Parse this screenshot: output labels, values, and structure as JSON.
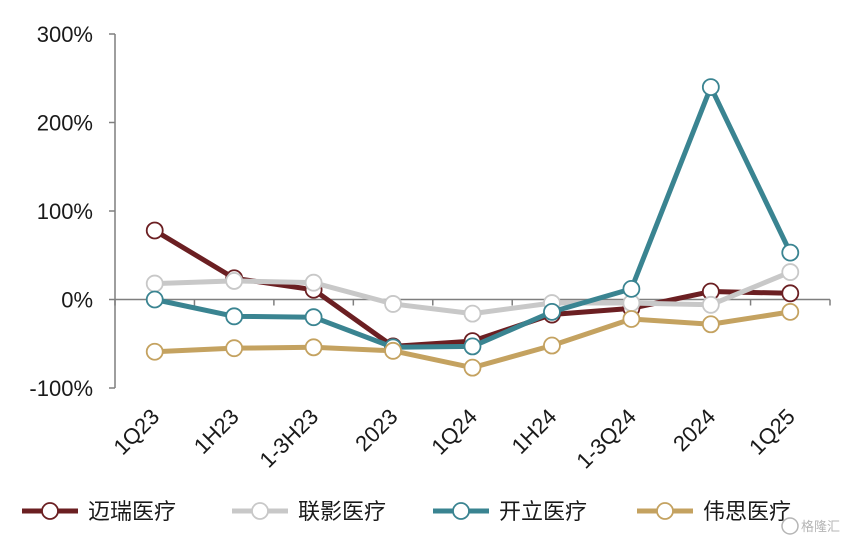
{
  "chart_data": {
    "type": "line",
    "categories": [
      "1Q23",
      "1H23",
      "1-3H23",
      "2023",
      "1Q24",
      "1H24",
      "1-3Q24",
      "2024",
      "1Q25"
    ],
    "ylim": [
      -100,
      300
    ],
    "yticks": [
      -100,
      0,
      100,
      200,
      300
    ],
    "ytick_labels": [
      "-100%",
      "0%",
      "100%",
      "200%",
      "300%"
    ],
    "title": "",
    "xlabel": "",
    "ylabel": "",
    "legend_position": "bottom",
    "series": [
      {
        "name": "迈瑞医疗",
        "color": "#6b1f22",
        "values": [
          78,
          24,
          11,
          -53,
          -47,
          -17,
          -10,
          9,
          7
        ]
      },
      {
        "name": "联影医疗",
        "color": "#c8c8c8",
        "values": [
          18,
          21,
          19,
          -5,
          -16,
          -4,
          -4,
          -6,
          31
        ]
      },
      {
        "name": "开立医疗",
        "color": "#3a8491",
        "values": [
          0,
          -19,
          -20,
          -54,
          -53,
          -14,
          12,
          240,
          53
        ]
      },
      {
        "name": "伟思医疗",
        "color": "#c4a260",
        "values": [
          -59,
          -55,
          -54,
          -58,
          -77,
          -52,
          -22,
          -28,
          -14
        ]
      }
    ]
  },
  "watermark": {
    "text": "格隆汇"
  }
}
